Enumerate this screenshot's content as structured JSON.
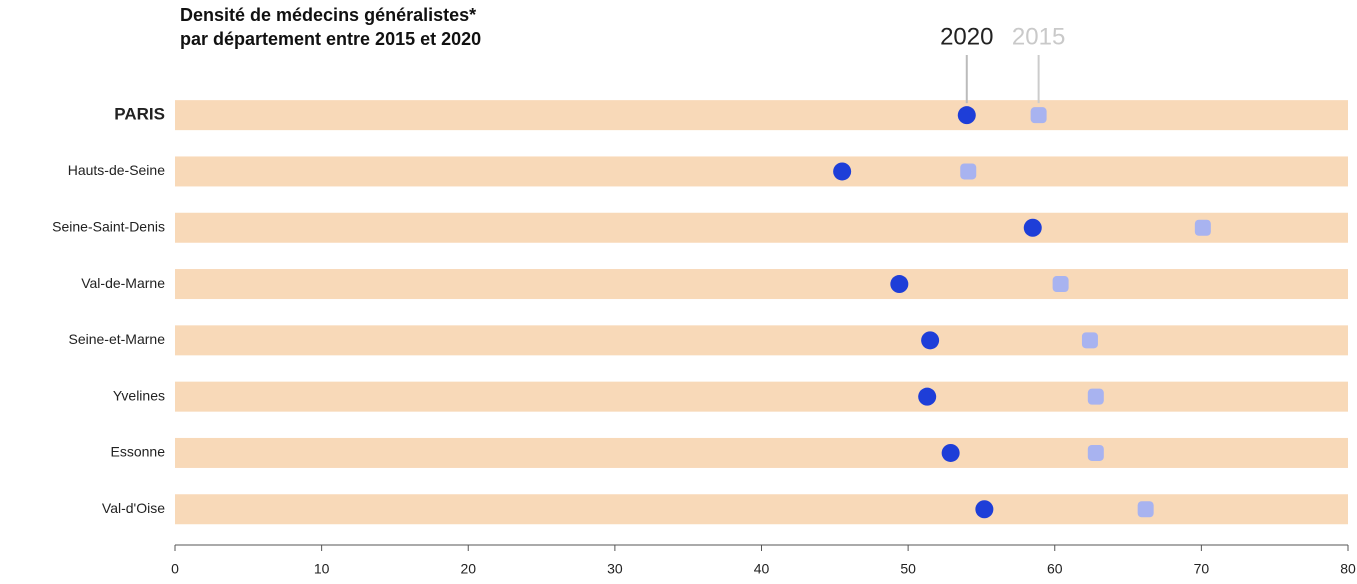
{
  "chart_data": {
    "type": "dot",
    "title": "Densité de médecins généralistes*",
    "subtitle": "par département entre 2015 et 2020",
    "categories": [
      "PARIS",
      "Hauts-de-Seine",
      "Seine-Saint-Denis",
      "Val-de-Marne",
      "Seine-et-Marne",
      "Yvelines",
      "Essonne",
      "Val-d'Oise"
    ],
    "series": [
      {
        "name": "2020",
        "color": "#1e3ed8",
        "values": [
          54.0,
          45.5,
          58.5,
          49.4,
          51.5,
          51.3,
          52.9,
          55.2
        ]
      },
      {
        "name": "2015",
        "color": "#a8b3f0",
        "values": [
          58.9,
          54.1,
          70.1,
          60.4,
          62.4,
          62.8,
          62.8,
          66.2
        ]
      }
    ],
    "xlim": [
      0,
      80
    ],
    "xticks": [
      0,
      10,
      20,
      30,
      40,
      50,
      60,
      70,
      80
    ],
    "band_color": "#f8d9b8"
  }
}
